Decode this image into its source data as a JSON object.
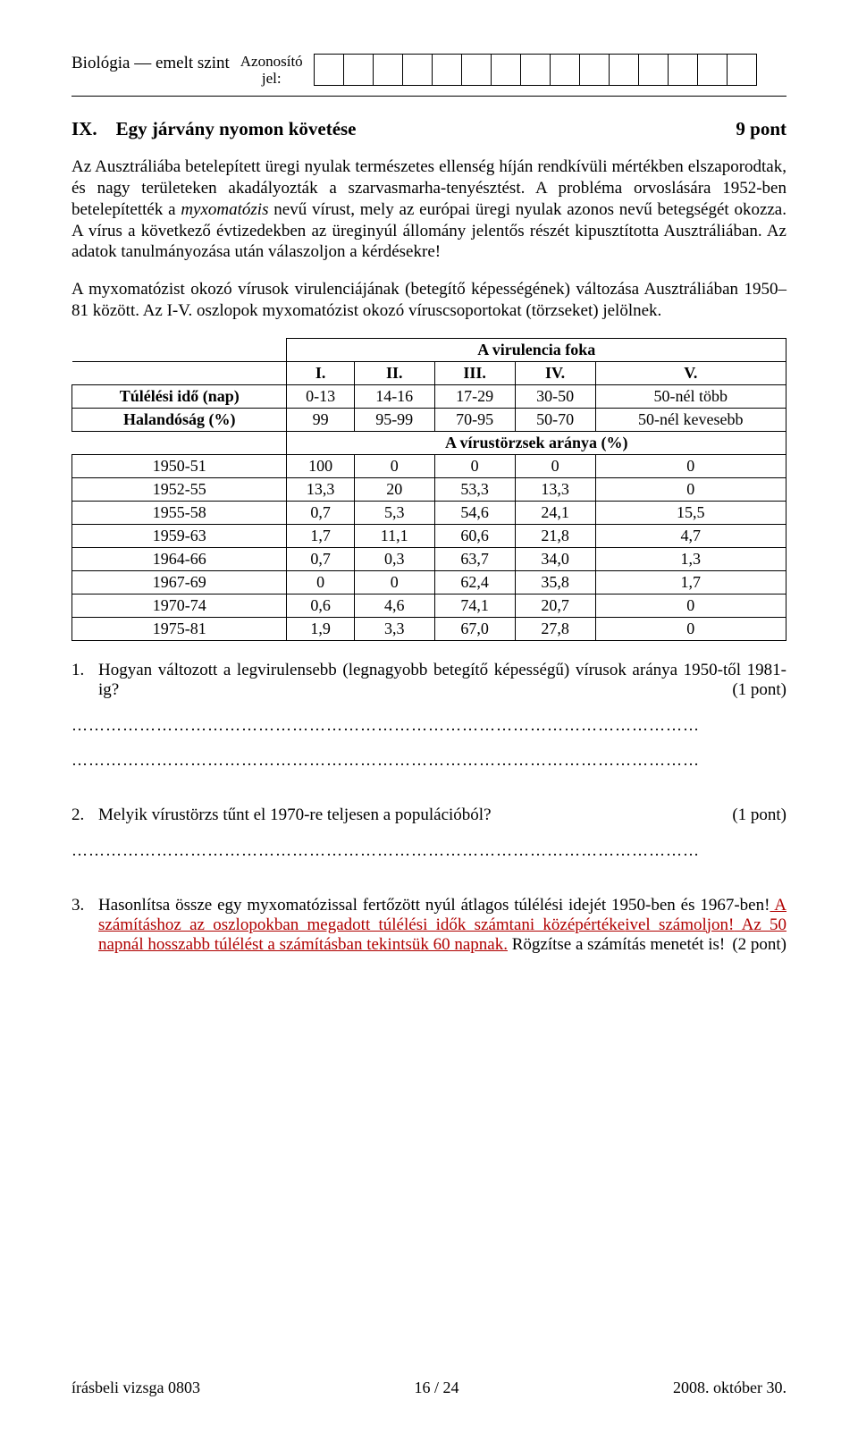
{
  "header": {
    "left": "Biológia — emelt szint",
    "center_line1": "Azonosító",
    "center_line2": "jel:",
    "id_cells": 15
  },
  "section": {
    "num": "IX.",
    "title": "Egy járvány nyomon követése",
    "points": "9 pont"
  },
  "para1_a": "Az Ausztráliába betelepített üregi nyulak természetes ellenség híján rendkívüli mértékben elszaporodtak, és nagy területeken akadályozták a szarvasmarha-tenyésztést. A probléma orvoslására 1952-ben betelepítették a ",
  "para1_ital": "myxomatózis",
  "para1_b": " nevű vírust, mely az európai üregi nyulak azonos nevű betegségét okozza. A vírus a következő évtizedekben az üreginyúl állomány jelentős részét kipusztította Ausztráliában. Az adatok tanulmányozása után válaszoljon a kérdésekre!",
  "para2": "A myxomatózist okozó vírusok virulenciájának (betegítő képességének) változása Ausztráliában 1950–81 között. Az I-V. oszlopok myxomatózist okozó víruscsoportokat (törzseket) jelölnek.",
  "table": {
    "hdr_virulence": "A virulencia foka",
    "cols": [
      "I.",
      "II.",
      "III.",
      "IV.",
      "V."
    ],
    "row_survival_label": "Túlélési idő (nap)",
    "row_survival": [
      "0-13",
      "14-16",
      "17-29",
      "30-50",
      "50-nél több"
    ],
    "row_mortality_label": "Halandóság (%)",
    "row_mortality": [
      "99",
      "95-99",
      "70-95",
      "50-70",
      "50-nél kevesebb"
    ],
    "hdr_strains": "A vírustörzsek aránya (%)",
    "years": [
      {
        "y": "1950-51",
        "v": [
          "100",
          "0",
          "0",
          "0",
          "0"
        ]
      },
      {
        "y": "1952-55",
        "v": [
          "13,3",
          "20",
          "53,3",
          "13,3",
          "0"
        ]
      },
      {
        "y": "1955-58",
        "v": [
          "0,7",
          "5,3",
          "54,6",
          "24,1",
          "15,5"
        ]
      },
      {
        "y": "1959-63",
        "v": [
          "1,7",
          "11,1",
          "60,6",
          "21,8",
          "4,7"
        ]
      },
      {
        "y": "1964-66",
        "v": [
          "0,7",
          "0,3",
          "63,7",
          "34,0",
          "1,3"
        ]
      },
      {
        "y": "1967-69",
        "v": [
          "0",
          "0",
          "62,4",
          "35,8",
          "1,7"
        ]
      },
      {
        "y": "1970-74",
        "v": [
          "0,6",
          "4,6",
          "74,1",
          "20,7",
          "0"
        ]
      },
      {
        "y": "1975-81",
        "v": [
          "1,9",
          "3,3",
          "67,0",
          "27,8",
          "0"
        ]
      }
    ]
  },
  "q1": {
    "num": "1.",
    "text": "Hogyan változott a legvirulensebb (legnagyobb betegítő képességű) vírusok aránya 1950-től 1981-ig?",
    "pts": "(1 pont)"
  },
  "q2": {
    "num": "2.",
    "text": "Melyik vírustörzs tűnt el 1970-re teljesen a populációból?",
    "pts": "(1 pont)"
  },
  "q3": {
    "num": "3.",
    "text_a": "Hasonlítsa össze egy myxomatózissal fertőzött nyúl átlagos túlélési idejét 1950-ben és 1967-ben!",
    "text_red": " A számításhoz az oszlopokban megadott túlélési idők számtani középértéke",
    "text_red2": "ivel számoljon!",
    "text_red3": " Az 50 napnál hosszabb túlélést a számításban tekintsük 60 napnak.",
    "text_b": " Rögzítse a számítás menetét is!",
    "pts": "(2 pont)"
  },
  "footer": {
    "left": "írásbeli vizsga 0803",
    "center": "16 / 24",
    "right": "2008. október 30."
  },
  "dotline": "…………………………………………………………………………………………………"
}
